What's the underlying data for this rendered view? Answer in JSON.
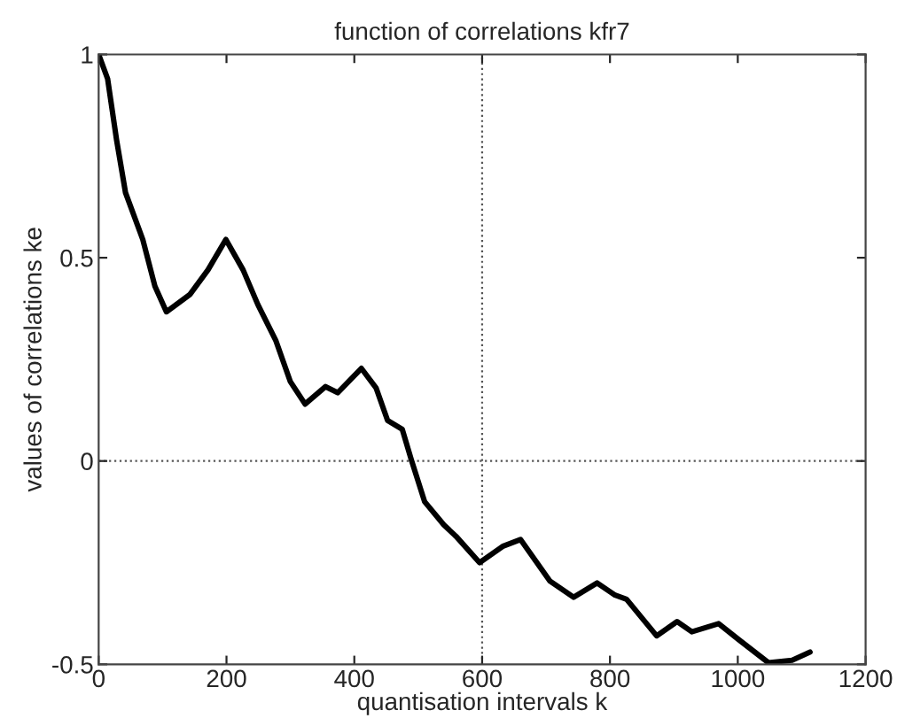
{
  "chart_data": {
    "type": "line",
    "title": "function of correlations kfr7",
    "xlabel": "quantisation intervals k",
    "ylabel": "values of correlations ke",
    "x": [
      0,
      14,
      28,
      42,
      69,
      88,
      106,
      143,
      171,
      199,
      226,
      249,
      277,
      300,
      323,
      355,
      374,
      411,
      434,
      452,
      475,
      489,
      510,
      540,
      559,
      596,
      632,
      660,
      706,
      743,
      780,
      808,
      826,
      873,
      905,
      928,
      970,
      1002,
      1048,
      1085,
      1113
    ],
    "series": [
      {
        "color": "#000000",
        "values": [
          1.0,
          0.94,
          0.79,
          0.66,
          0.545,
          0.43,
          0.367,
          0.41,
          0.47,
          0.545,
          0.47,
          0.385,
          0.297,
          0.195,
          0.14,
          0.183,
          0.168,
          0.228,
          0.18,
          0.1,
          0.078,
          0.004,
          -0.1,
          -0.157,
          -0.185,
          -0.25,
          -0.21,
          -0.193,
          -0.295,
          -0.335,
          -0.3,
          -0.33,
          -0.34,
          -0.43,
          -0.395,
          -0.42,
          -0.4,
          -0.44,
          -0.496,
          -0.49,
          -0.47
        ]
      }
    ],
    "xlim": [
      0,
      1200
    ],
    "xticks": [
      0,
      200,
      400,
      600,
      800,
      1000,
      1200
    ],
    "ylim": [
      -0.5,
      1
    ],
    "yticks": [
      -0.5,
      0,
      0.5,
      1
    ],
    "ref_lines": [
      {
        "axis": "x",
        "value": 600,
        "line_style": "dotted",
        "color": "#555555"
      },
      {
        "axis": "y",
        "value": 0,
        "line_style": "dotted",
        "color": "#555555"
      }
    ],
    "grid": false,
    "legend": false,
    "marker": "none",
    "line_style": "solid"
  }
}
